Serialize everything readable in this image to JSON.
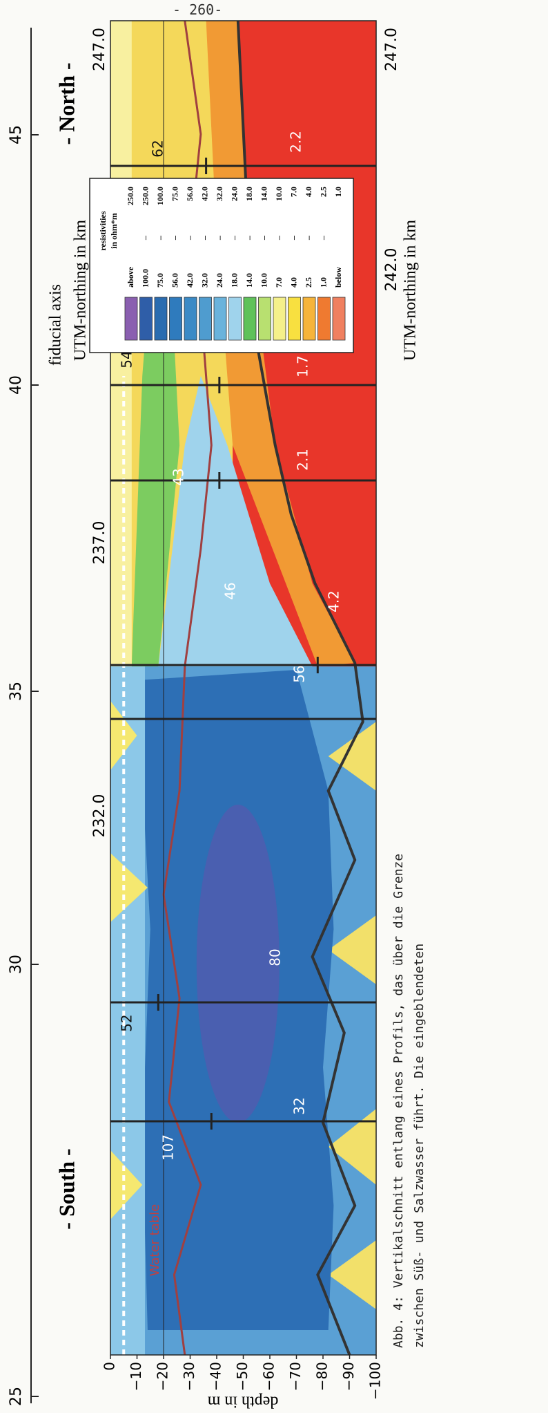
{
  "page_number": "- 260-",
  "figure": {
    "fiducial_axis": {
      "title": "fiducial axis",
      "ticks": [
        "25",
        "30",
        "35",
        "40",
        "45"
      ]
    },
    "direction_labels": [
      "- South -",
      "- North -"
    ],
    "utm_top": {
      "title": "UTM-northing in km",
      "ticks": [
        "232.0",
        "237.0",
        "247.0"
      ]
    },
    "utm_bottom": {
      "title": "UTM-northing in km",
      "ticks": [
        "242.0",
        "247.0"
      ]
    },
    "depth_axis": {
      "title": "depth in m",
      "ticks": [
        "0",
        "−10",
        "−20",
        "−30",
        "−40",
        "−50",
        "−60",
        "−70",
        "−80",
        "−90",
        "−100"
      ]
    },
    "annotations": [
      "Water table",
      "107",
      "32",
      "52",
      "80",
      "56",
      "46",
      "4.2",
      "43",
      "2.1",
      "54",
      "1.7",
      "62",
      "2.2"
    ],
    "legend": {
      "title": [
        "resistivities",
        "in ohm*m"
      ],
      "rows": [
        {
          "from": "above",
          "to": "250.0"
        },
        {
          "from": "100.0",
          "sep": "–",
          "to": "250.0"
        },
        {
          "from": "75.0",
          "sep": "–",
          "to": "100.0"
        },
        {
          "from": "56.0",
          "sep": "–",
          "to": "75.0"
        },
        {
          "from": "42.0",
          "sep": "–",
          "to": "56.0"
        },
        {
          "from": "32.0",
          "sep": "–",
          "to": "42.0"
        },
        {
          "from": "24.0",
          "sep": "–",
          "to": "32.0"
        },
        {
          "from": "18.0",
          "sep": "–",
          "to": "24.0"
        },
        {
          "from": "14.0",
          "sep": "–",
          "to": "18.0"
        },
        {
          "from": "10.0",
          "sep": "–",
          "to": "14.0"
        },
        {
          "from": "7.0",
          "sep": "–",
          "to": "10.0"
        },
        {
          "from": "4.0",
          "sep": "–",
          "to": "7.0"
        },
        {
          "from": "2.5",
          "sep": "–",
          "to": "4.0"
        },
        {
          "from": "1.0",
          "sep": "–",
          "to": "2.5"
        },
        {
          "from": "below",
          "to": "1.0"
        }
      ]
    }
  },
  "caption": [
    "Abb. 4: Vertikalschnitt entlang eines Profils, das über die Grenze",
    "zwischen Süß- und Salzwasser führt. Die eingeblendeten"
  ]
}
